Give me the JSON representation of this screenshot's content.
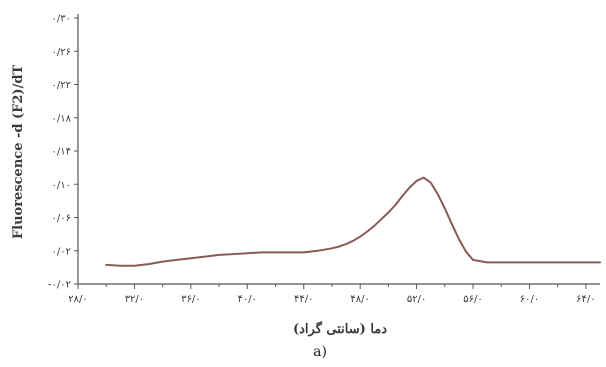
{
  "chart_data": {
    "type": "line",
    "title": "",
    "xlabel": "دما (سانتی گراد)",
    "ylabel": "Fluorescence -d (F2)/dT",
    "panel_label": "a)",
    "xlim": [
      28,
      65
    ],
    "ylim": [
      -0.02,
      0.3
    ],
    "x_ticks": [
      28,
      32,
      36,
      40,
      44,
      48,
      52,
      56,
      60,
      64
    ],
    "x_tick_labels": [
      "۲۸/۰",
      "۳۲/۰",
      "۳۶/۰",
      "۴۰/۰",
      "۴۴/۰",
      "۴۸/۰",
      "۵۲/۰",
      "۵۶/۰",
      "۶۰/۰",
      "۶۴/۰"
    ],
    "y_ticks": [
      -0.02,
      0.02,
      0.06,
      0.1,
      0.14,
      0.18,
      0.22,
      0.26,
      0.3
    ],
    "y_tick_labels": [
      "-۰/۰۲",
      "۰/۰۲",
      "۰/۰۶",
      "۰/۱۰",
      "۰/۱۴",
      "۰/۱۸",
      "۰/۲۲",
      "۰/۲۶",
      "۰/۳۰"
    ],
    "grid": false,
    "series": [
      {
        "color": "#8a5a55",
        "x": [
          30,
          31,
          32,
          33,
          34,
          35,
          36,
          37,
          38,
          39,
          40,
          41,
          42,
          43,
          44,
          45,
          46,
          46.5,
          47,
          47.5,
          48,
          48.5,
          49,
          49.5,
          50,
          50.5,
          51,
          51.5,
          52,
          52.5,
          53,
          53.5,
          54,
          54.5,
          55,
          55.5,
          56,
          57,
          58,
          60,
          62,
          65
        ],
        "y": [
          0.003,
          0.002,
          0.002,
          0.004,
          0.007,
          0.009,
          0.011,
          0.013,
          0.015,
          0.016,
          0.017,
          0.018,
          0.018,
          0.018,
          0.018,
          0.02,
          0.023,
          0.025,
          0.028,
          0.032,
          0.037,
          0.043,
          0.05,
          0.058,
          0.066,
          0.075,
          0.086,
          0.096,
          0.104,
          0.108,
          0.102,
          0.088,
          0.071,
          0.052,
          0.034,
          0.019,
          0.009,
          0.006,
          0.006,
          0.006,
          0.006,
          0.006
        ]
      }
    ]
  }
}
